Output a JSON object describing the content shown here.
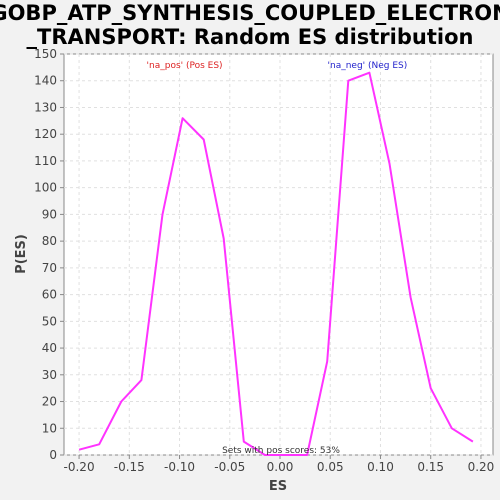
{
  "chart_data": {
    "type": "line",
    "title_lines": [
      "GOBP_ATP_SYNTHESIS_COUPLED_ELECTRON",
      "_TRANSPORT: Random ES distribution"
    ],
    "xlabel": "ES",
    "ylabel": "P(ES)",
    "xlim": [
      -0.215,
      0.212
    ],
    "ylim": [
      0,
      150
    ],
    "xticks": [
      "-0.20",
      "-0.15",
      "-0.10",
      "-0.05",
      "0.00",
      "0.05",
      "0.10",
      "0.15",
      "0.20"
    ],
    "xtick_values": [
      -0.2,
      -0.15,
      -0.1,
      -0.05,
      0.0,
      0.05,
      0.1,
      0.15,
      0.2
    ],
    "yticks": [
      "0",
      "10",
      "20",
      "30",
      "40",
      "50",
      "60",
      "70",
      "80",
      "90",
      "100",
      "110",
      "120",
      "130",
      "140",
      "150"
    ],
    "ytick_values": [
      0,
      10,
      20,
      30,
      40,
      50,
      60,
      70,
      80,
      90,
      100,
      110,
      120,
      130,
      140,
      150
    ],
    "grid": true,
    "series": [
      {
        "color": "#ff33ff",
        "x": [
          -0.2,
          -0.18,
          -0.158,
          -0.138,
          -0.117,
          -0.097,
          -0.076,
          -0.056,
          -0.036,
          -0.015,
          0.005,
          0.027,
          0.047,
          0.068,
          0.089,
          0.109,
          0.13,
          0.15,
          0.171,
          0.192
        ],
        "y": [
          2,
          4,
          20,
          28,
          90,
          126,
          118,
          81,
          5,
          0,
          0,
          0,
          35,
          140,
          143,
          109,
          59,
          25,
          10,
          5
        ]
      }
    ],
    "annotations": [
      {
        "text": "'na_pos' (Pos ES)",
        "color": "#dd2222",
        "x": -0.095
      },
      {
        "text": "'na_neg' (Neg ES)",
        "color": "#2222cc",
        "x": 0.087
      }
    ],
    "footnote": "Sets with pos scores: 53%"
  }
}
